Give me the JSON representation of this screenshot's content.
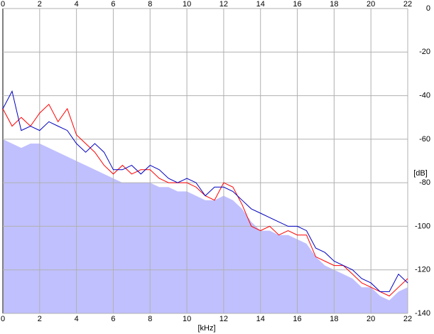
{
  "chart_data": {
    "type": "line",
    "x_label": "[kHz]",
    "y_label": "[dB]",
    "xlim": [
      0,
      22
    ],
    "xticks": [
      0,
      2,
      4,
      6,
      8,
      10,
      12,
      14,
      16,
      18,
      20,
      22
    ],
    "ylim": [
      -140,
      0
    ],
    "yticks": [
      0,
      -20,
      -40,
      -60,
      -80,
      -100,
      -120,
      -140
    ],
    "grid": true,
    "x": [
      0,
      0.5,
      1,
      1.5,
      2,
      2.5,
      3,
      3.5,
      4,
      4.5,
      5,
      5.5,
      6,
      6.5,
      7,
      7.5,
      8,
      8.5,
      9,
      9.5,
      10,
      10.5,
      11,
      11.5,
      12,
      12.5,
      13,
      13.5,
      14,
      14.5,
      15,
      15.5,
      16,
      16.5,
      17,
      17.5,
      18,
      18.5,
      19,
      19.5,
      20,
      20.5,
      21,
      21.5,
      22
    ],
    "series": [
      {
        "color": "#c0c0ff",
        "fill": true,
        "values": [
          -60,
          -62,
          -64,
          -62,
          -62,
          -64,
          -66,
          -68,
          -70,
          -72,
          -74,
          -76,
          -78,
          -80,
          -80,
          -80,
          -80,
          -82,
          -82,
          -84,
          -84,
          -86,
          -88,
          -88,
          -86,
          -88,
          -92,
          -98,
          -102,
          -102,
          -104,
          -104,
          -106,
          -108,
          -114,
          -118,
          -120,
          -122,
          -124,
          -128,
          -128,
          -132,
          -134,
          -130,
          -128
        ]
      },
      {
        "color": "#ff0000",
        "fill": false,
        "values": [
          -46,
          -54,
          -50,
          -54,
          -48,
          -44,
          -52,
          -46,
          -58,
          -62,
          -66,
          -72,
          -76,
          -72,
          -76,
          -74,
          -74,
          -78,
          -80,
          -80,
          -80,
          -82,
          -86,
          -88,
          -80,
          -82,
          -90,
          -100,
          -102,
          -100,
          -104,
          -102,
          -104,
          -104,
          -114,
          -116,
          -118,
          -118,
          -122,
          -126,
          -128,
          -130,
          -132,
          -128,
          -124
        ]
      },
      {
        "color": "#0000c0",
        "fill": false,
        "values": [
          -46,
          -38,
          -56,
          -54,
          -56,
          -52,
          -54,
          -56,
          -62,
          -66,
          -62,
          -66,
          -74,
          -74,
          -72,
          -76,
          -72,
          -74,
          -78,
          -80,
          -78,
          -80,
          -86,
          -82,
          -82,
          -84,
          -88,
          -92,
          -94,
          -96,
          -98,
          -100,
          -100,
          -102,
          -110,
          -112,
          -116,
          -118,
          -120,
          -124,
          -126,
          -130,
          -130,
          -122,
          -126
        ]
      }
    ]
  }
}
